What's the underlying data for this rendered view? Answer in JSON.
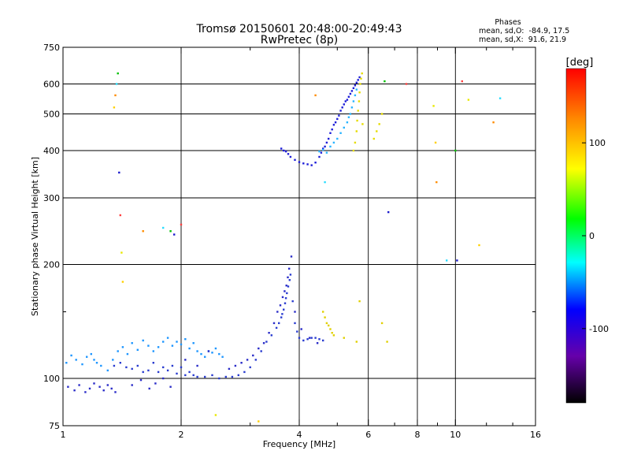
{
  "chart_data": {
    "type": "scatter",
    "title": "Tromsø 20150601 20:48:00-20:49:43",
    "subtitle": "RwPretec (8p)",
    "xlabel": "Frequency [MHz]",
    "ylabel": "Stationary phase Virtual Height [km]",
    "x_scale": "log",
    "y_scale": "log",
    "xlim": [
      1,
      16
    ],
    "ylim": [
      75,
      750
    ],
    "x_ticks": [
      1,
      2,
      4,
      6,
      8,
      10,
      16
    ],
    "x_tick_labels": [
      "1",
      "2",
      "4",
      "6",
      "8",
      "10",
      "16"
    ],
    "x_minor_ticks": [
      3,
      5,
      7,
      9,
      12,
      14
    ],
    "x_grid": [
      2,
      4,
      6,
      8,
      10
    ],
    "y_ticks": [
      75,
      100,
      200,
      300,
      400,
      500,
      600,
      750
    ],
    "y_tick_labels": [
      "75",
      "100",
      "200",
      "300",
      "400",
      "500",
      "600",
      "750"
    ],
    "y_minor_ticks": [
      150
    ],
    "y_grid": [
      100,
      200,
      300,
      400,
      500,
      600
    ],
    "grid": true,
    "stats_header": "Phases",
    "stats": [
      "mean, sd,O:  -84.9, 17.5",
      "mean, sd,X:  91.6, 21.9"
    ],
    "colorbar": {
      "label": "[deg]",
      "range": [
        -180,
        180
      ],
      "ticks": [
        100,
        0,
        -100
      ],
      "tick_labels": [
        "100",
        "0",
        "-100"
      ],
      "stops": [
        "#000000",
        "#6600aa",
        "#0000ff",
        "#00ffff",
        "#00ff00",
        "#ffff00",
        "#ff8800",
        "#ff0000"
      ]
    },
    "series": [
      {
        "name": "trace-lower-f-layer-cyan",
        "phase": -70,
        "color": "#1e96ff",
        "x": [
          1.02,
          1.05,
          1.08,
          1.12,
          1.15,
          1.18,
          1.2,
          1.22,
          1.25,
          1.3,
          1.34,
          1.38,
          1.42,
          1.46,
          1.5,
          1.55,
          1.6,
          1.65,
          1.7,
          1.75,
          1.8,
          1.85,
          1.9,
          1.95,
          2.0,
          2.05,
          2.1,
          2.15,
          2.2,
          2.25,
          2.3,
          2.35,
          2.4,
          2.45,
          2.5,
          2.55
        ],
        "y": [
          110,
          115,
          112,
          109,
          114,
          116,
          112,
          110,
          108,
          105,
          112,
          118,
          121,
          116,
          124,
          119,
          126,
          122,
          118,
          121,
          125,
          128,
          122,
          125,
          123,
          127,
          120,
          124,
          118,
          116,
          114,
          118,
          117,
          120,
          116,
          114
        ]
      },
      {
        "name": "trace-lower-o-mode-blue",
        "phase": -95,
        "color": "#2a3cd0",
        "x": [
          1.35,
          1.4,
          1.45,
          1.5,
          1.55,
          1.6,
          1.65,
          1.7,
          1.75,
          1.8,
          1.85,
          1.9,
          1.95,
          2.0,
          2.05,
          2.1,
          2.15,
          2.2,
          2.3,
          2.4,
          2.5,
          2.6,
          2.7,
          2.8,
          2.9,
          3.0,
          3.1,
          3.2,
          3.3,
          3.4,
          3.5,
          3.55,
          3.6,
          3.62,
          3.65,
          3.68,
          3.7,
          3.72,
          3.75,
          3.78,
          3.8,
          3.85,
          3.9,
          3.95,
          4.0,
          4.1,
          4.2,
          4.3,
          4.4,
          4.5,
          4.6
        ],
        "y": [
          108,
          110,
          107,
          106,
          108,
          104,
          105,
          110,
          104,
          107,
          105,
          108,
          103,
          107,
          102,
          104,
          102,
          101,
          101,
          102,
          100,
          101,
          101,
          102,
          104,
          107,
          112,
          118,
          125,
          130,
          136,
          140,
          145,
          148,
          152,
          158,
          163,
          168,
          175,
          182,
          188,
          160,
          140,
          133,
          128,
          126,
          127,
          128,
          128,
          127,
          126
        ]
      },
      {
        "name": "trace-lower-scatter-blue",
        "phase": -100,
        "color": "#2a2cc8",
        "x": [
          1.03,
          1.07,
          1.1,
          1.14,
          1.17,
          1.2,
          1.24,
          1.27,
          1.3,
          1.33,
          1.36,
          1.5,
          1.58,
          1.66,
          1.72,
          1.8,
          1.88,
          2.05,
          2.2,
          2.35,
          2.65,
          2.75,
          2.85,
          2.95,
          3.05,
          3.15,
          3.25,
          3.35,
          3.45,
          3.52,
          3.58,
          3.63,
          3.67,
          3.71,
          3.74,
          3.77,
          3.82,
          3.9,
          4.05,
          4.25,
          4.45
        ],
        "y": [
          95,
          93,
          96,
          92,
          94,
          97,
          95,
          93,
          96,
          94,
          92,
          96,
          99,
          94,
          97,
          100,
          95,
          112,
          108,
          118,
          106,
          108,
          110,
          112,
          115,
          120,
          124,
          132,
          140,
          150,
          156,
          164,
          170,
          176,
          185,
          195,
          210,
          150,
          135,
          128,
          124
        ]
      },
      {
        "name": "trace-upper-f-layer-blue",
        "phase": -105,
        "color": "#1e1ed8",
        "x": [
          3.6,
          3.65,
          3.7,
          3.75,
          3.8,
          3.9,
          4.0,
          4.1,
          4.2,
          4.3,
          4.4,
          4.5,
          4.55,
          4.6,
          4.65,
          4.7,
          4.75,
          4.8,
          4.85,
          4.9,
          4.95,
          5.0,
          5.05,
          5.1,
          5.15,
          5.2,
          5.25,
          5.3,
          5.35,
          5.4,
          5.45,
          5.5,
          5.55,
          5.6,
          5.65,
          5.7
        ],
        "y": [
          405,
          400,
          398,
          392,
          385,
          378,
          373,
          370,
          368,
          366,
          372,
          385,
          395,
          405,
          410,
          420,
          430,
          445,
          455,
          468,
          475,
          485,
          495,
          510,
          520,
          530,
          540,
          545,
          555,
          565,
          575,
          585,
          595,
          605,
          615,
          625
        ]
      },
      {
        "name": "trace-upper-f-layer-cyan",
        "phase": -80,
        "color": "#28b4ff",
        "x": [
          4.5,
          4.6,
          4.7,
          4.8,
          4.9,
          5.0,
          5.1,
          5.2,
          5.3,
          5.35,
          5.4,
          5.45,
          5.5,
          5.55,
          5.6
        ],
        "y": [
          398,
          402,
          395,
          410,
          420,
          430,
          445,
          460,
          475,
          490,
          500,
          520,
          540,
          560,
          580
        ]
      },
      {
        "name": "trace-upper-x-mode-yellow",
        "phase": 100,
        "color": "#e6dc00",
        "x": [
          5.5,
          5.55,
          5.6,
          5.62,
          5.65,
          5.68,
          5.7,
          5.72,
          5.75,
          5.78,
          5.8,
          6.2,
          6.3,
          6.4,
          6.5
        ],
        "y": [
          400,
          420,
          450,
          480,
          510,
          540,
          570,
          600,
          620,
          640,
          470,
          430,
          450,
          470,
          500
        ]
      },
      {
        "name": "trace-lower-x-mode-yellow",
        "phase": 110,
        "color": "#e0d000",
        "x": [
          4.6,
          4.65,
          4.7,
          4.75,
          4.8,
          4.85,
          4.9,
          5.2,
          5.6,
          5.7,
          6.5,
          6.7
        ],
        "y": [
          150,
          145,
          140,
          138,
          135,
          132,
          130,
          128,
          125,
          160,
          140,
          125
        ]
      },
      {
        "name": "sporadic-echoes-mixed",
        "phase": 0,
        "color": "#10c060",
        "x": [
          1.35,
          1.36,
          1.37,
          1.38,
          1.39,
          1.4,
          1.41,
          1.42,
          1.6,
          1.8,
          1.88,
          1.92,
          2.0,
          2.45,
          3.15,
          4.4,
          4.65,
          6.6,
          6.75,
          7.5,
          8.8,
          8.9,
          8.95,
          9.5,
          10.0,
          10.1,
          10.4,
          10.8,
          11.5,
          12.5,
          13.0
        ],
        "y": [
          520,
          560,
          600,
          640,
          350,
          270,
          215,
          180,
          245,
          250,
          245,
          240,
          255,
          80,
          77,
          560,
          330,
          610,
          275,
          600,
          525,
          420,
          330,
          205,
          400,
          205,
          610,
          545,
          225,
          475,
          550
        ]
      }
    ]
  }
}
